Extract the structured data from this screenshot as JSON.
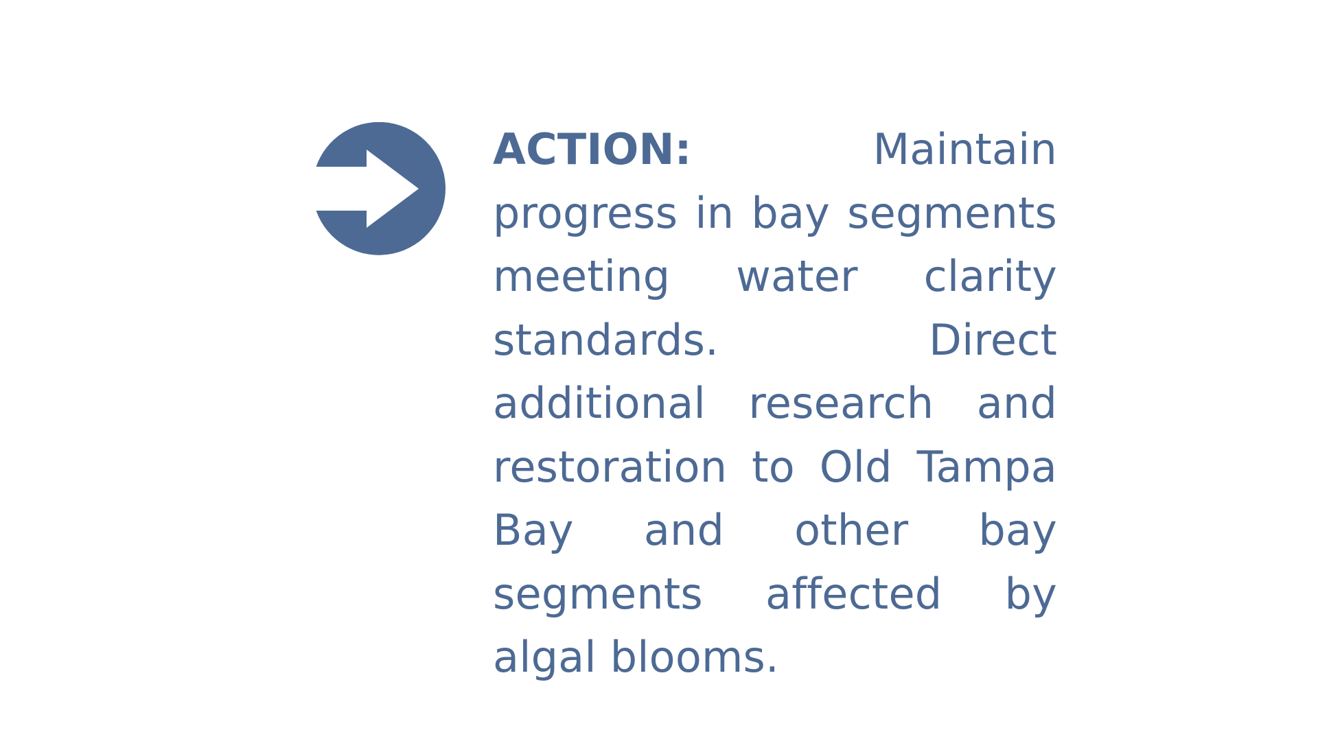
{
  "action": {
    "label": "ACTION:",
    "body": "Maintain progress in bay segments meeting water clarity standards. Direct additional research and restoration to Old Tampa Bay and other bay segments affected by algal blooms."
  },
  "icon": {
    "name": "arrow-right-circle-icon",
    "color": "#4d6a94"
  }
}
